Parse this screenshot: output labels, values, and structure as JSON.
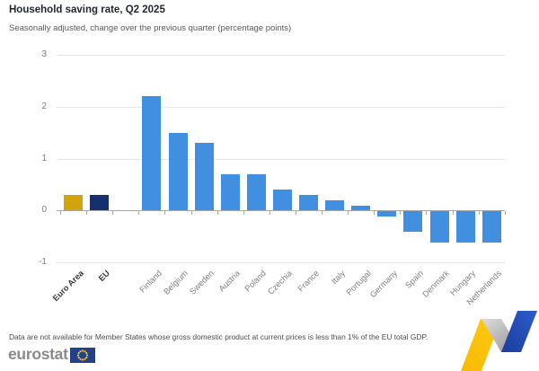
{
  "header": {
    "title": "Household saving rate, Q2 2025",
    "subtitle": "Seasonally adjusted, change over the previous quarter (percentage points)"
  },
  "chart_data": {
    "type": "bar",
    "title": "Household saving rate, Q2 2025",
    "subtitle": "Seasonally adjusted, change over the previous quarter (percentage points)",
    "xlabel": "",
    "ylabel": "",
    "ylim": [
      -1,
      3
    ],
    "yticks": [
      3,
      2,
      1,
      0,
      -1
    ],
    "grid": true,
    "legend": false,
    "categories": [
      "Euro Area",
      "EU",
      "",
      "Finland",
      "Belgium",
      "Sweden",
      "Austria",
      "Poland",
      "Czechia",
      "France",
      "Italy",
      "Portugal",
      "Germany",
      "Spain",
      "Denmark",
      "Hungary",
      "Netherlands"
    ],
    "values": [
      0.3,
      0.3,
      null,
      2.2,
      1.5,
      1.3,
      0.7,
      0.7,
      0.4,
      0.3,
      0.2,
      0.1,
      -0.1,
      -0.4,
      -0.6,
      -0.6,
      -0.6
    ],
    "bars": [
      {
        "label": "Euro Area",
        "value": 0.3,
        "color": "#d2a30b",
        "emphasis": true
      },
      {
        "label": "EU",
        "value": 0.3,
        "color": "#15306c",
        "emphasis": true
      },
      {
        "label": "",
        "value": null,
        "color": null,
        "emphasis": false
      },
      {
        "label": "Finland",
        "value": 2.2,
        "color": "#418fe0",
        "emphasis": false
      },
      {
        "label": "Belgium",
        "value": 1.5,
        "color": "#418fe0",
        "emphasis": false
      },
      {
        "label": "Sweden",
        "value": 1.3,
        "color": "#418fe0",
        "emphasis": false
      },
      {
        "label": "Austria",
        "value": 0.7,
        "color": "#418fe0",
        "emphasis": false
      },
      {
        "label": "Poland",
        "value": 0.7,
        "color": "#418fe0",
        "emphasis": false
      },
      {
        "label": "Czechia",
        "value": 0.4,
        "color": "#418fe0",
        "emphasis": false
      },
      {
        "label": "France",
        "value": 0.3,
        "color": "#418fe0",
        "emphasis": false
      },
      {
        "label": "Italy",
        "value": 0.2,
        "color": "#418fe0",
        "emphasis": false
      },
      {
        "label": "Portugal",
        "value": 0.1,
        "color": "#418fe0",
        "emphasis": false
      },
      {
        "label": "Germany",
        "value": -0.1,
        "color": "#418fe0",
        "emphasis": false
      },
      {
        "label": "Spain",
        "value": -0.4,
        "color": "#418fe0",
        "emphasis": false
      },
      {
        "label": "Denmark",
        "value": -0.6,
        "color": "#418fe0",
        "emphasis": false
      },
      {
        "label": "Hungary",
        "value": -0.6,
        "color": "#418fe0",
        "emphasis": false
      },
      {
        "label": "Netherlands",
        "value": -0.6,
        "color": "#418fe0",
        "emphasis": false
      }
    ]
  },
  "footer": {
    "note": "Data are not available for Member States whose gross domestic product at current prices is less than 1% of the EU total GDP.",
    "logo_text": "eurostat"
  },
  "colors": {
    "euro_area_bar": "#d2a30b",
    "eu_bar": "#15306c",
    "member_state_bar": "#418fe0",
    "gridline": "#e8e8e8",
    "axis": "#a8a8a8",
    "title_text": "#1f2532",
    "subtitle_text": "#595959",
    "label_text": "#808080",
    "flag_blue": "#24418e",
    "flag_stars": "#f8c80c",
    "ribbon_yellow": "#fbc40a",
    "ribbon_gray": "#bdbdbd",
    "ribbon_blue": "#2453c0"
  }
}
